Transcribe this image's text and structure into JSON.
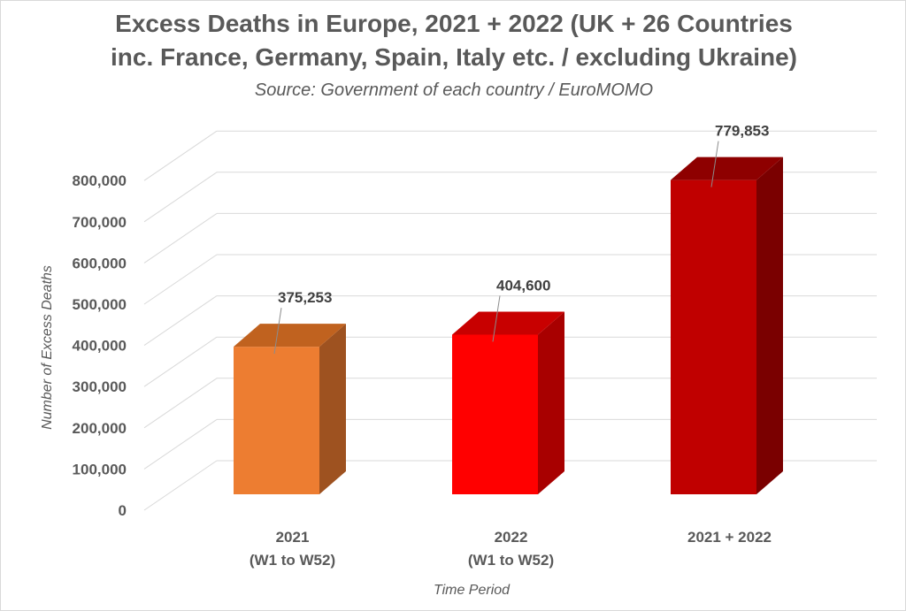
{
  "chart_data": {
    "type": "bar",
    "title_line1": "Excess Deaths in Europe, 2021 + 2022 (UK + 26 Countries",
    "title_line2": "inc. France, Germany, Spain, Italy etc. / excluding Ukraine)",
    "subtitle": "Source: Government of each country / EuroMOMO",
    "xlabel": "Time Period",
    "ylabel": "Number of Excess Deaths",
    "ylim": [
      0,
      800000
    ],
    "yticks": [
      0,
      100000,
      200000,
      300000,
      400000,
      500000,
      600000,
      700000,
      800000
    ],
    "ytick_labels": [
      "0",
      "100,000",
      "200,000",
      "300,000",
      "400,000",
      "500,000",
      "600,000",
      "700,000",
      "800,000"
    ],
    "categories": [
      [
        "2021",
        "(W1 to W52)"
      ],
      [
        "2022",
        "(W1 to W52)"
      ],
      [
        "2021 + 2022"
      ]
    ],
    "values": [
      375253,
      404600,
      779853
    ],
    "value_labels": [
      "375,253",
      "404,600",
      "779,853"
    ],
    "colors": [
      {
        "front": "#ED7D31",
        "side": "#9E5220",
        "top": "#C0621F"
      },
      {
        "front": "#FF0000",
        "side": "#A80000",
        "top": "#C80000"
      },
      {
        "front": "#C00000",
        "side": "#7A0000",
        "top": "#8E0000"
      }
    ],
    "grid": true,
    "style": "3d-column"
  }
}
